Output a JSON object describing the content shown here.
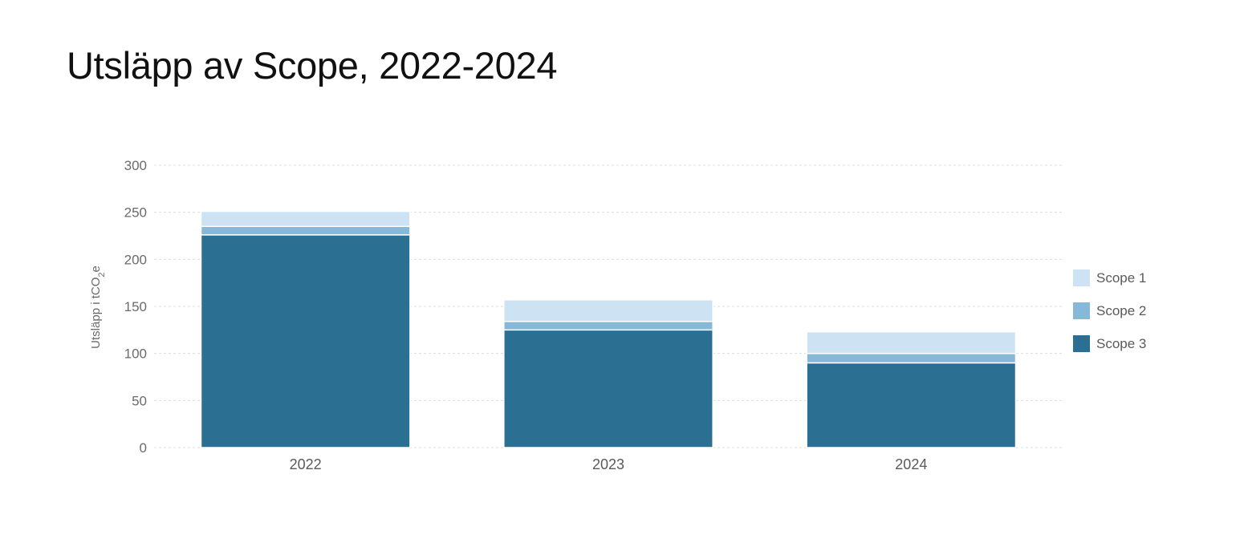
{
  "chart_data": {
    "type": "bar",
    "stacked": true,
    "title": "Utsläpp av Scope, 2022-2024",
    "ylabel": {
      "main": "Utsläpp i tCO",
      "sub": "2",
      "suffix": "e"
    },
    "categories": [
      "2022",
      "2023",
      "2024"
    ],
    "ylim": [
      0,
      300
    ],
    "yticks": [
      0,
      50,
      100,
      150,
      200,
      250,
      300
    ],
    "grid": true,
    "legend_position": "right",
    "series": [
      {
        "name": "Scope 3",
        "color": "#2b6f93",
        "values": [
          226,
          125,
          90
        ]
      },
      {
        "name": "Scope 2",
        "color": "#86b9d8",
        "values": [
          9,
          9,
          10
        ]
      },
      {
        "name": "Scope 1",
        "color": "#cde2f2",
        "values": [
          16,
          23,
          23
        ]
      }
    ],
    "legend_order": [
      "Scope 1",
      "Scope 2",
      "Scope 3"
    ]
  }
}
